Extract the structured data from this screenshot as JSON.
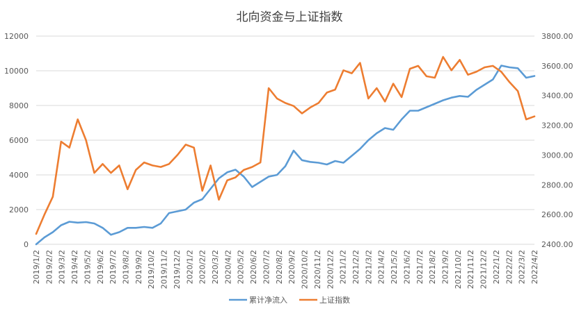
{
  "chart_data": {
    "type": "line",
    "title": "北向资金与上证指数",
    "legend_position": "bottom",
    "grid": true,
    "x_tick_labels": [
      "2019/1/2",
      "2019/2/2",
      "2019/3/2",
      "2019/4/2",
      "2019/5/2",
      "2019/6/2",
      "2019/7/2",
      "2019/8/2",
      "2019/9/2",
      "2019/10/2",
      "2019/11/2",
      "2019/12/2",
      "2020/1/2",
      "2020/2/2",
      "2020/3/2",
      "2020/4/2",
      "2020/5/2",
      "2020/6/2",
      "2020/7/2",
      "2020/8/2",
      "2020/9/2",
      "2020/10/2",
      "2020/11/2",
      "2020/12/2",
      "2021/1/2",
      "2021/2/2",
      "2021/3/2",
      "2021/4/2",
      "2021/5/2",
      "2021/6/2",
      "2021/7/2",
      "2021/8/2",
      "2021/9/2",
      "2021/10/2",
      "2021/11/2",
      "2021/12/2",
      "2022/1/2",
      "2022/2/2",
      "2022/3/2",
      "2022/4/2"
    ],
    "y_left": {
      "ylim": [
        0,
        12000
      ],
      "ticks": [
        "0",
        "2000",
        "4000",
        "6000",
        "8000",
        "10000",
        "12000"
      ]
    },
    "y_right": {
      "ylim": [
        2400,
        3800
      ],
      "ticks": [
        "2400.00",
        "2600.00",
        "2800.00",
        "3000.00",
        "3200.00",
        "3400.00",
        "3600.00",
        "3800.00"
      ]
    },
    "series": [
      {
        "name": "累计净流入",
        "axis": "left",
        "color": "#5B9BD5",
        "values": [
          0,
          400,
          700,
          1100,
          1300,
          1250,
          1280,
          1200,
          950,
          550,
          700,
          950,
          950,
          1000,
          950,
          1200,
          1800,
          1900,
          2000,
          2400,
          2600,
          3200,
          3800,
          4150,
          4300,
          3900,
          3300,
          3600,
          3900,
          4000,
          4500,
          5400,
          4850,
          4750,
          4700,
          4600,
          4800,
          4700,
          5100,
          5500,
          6000,
          6400,
          6700,
          6600,
          7200,
          7700,
          7700,
          7900,
          8100,
          8300,
          8450,
          8550,
          8500,
          8900,
          9200,
          9500,
          10300,
          10200,
          10150,
          9600,
          9700
        ]
      },
      {
        "name": "上证指数",
        "axis": "right",
        "color": "#ED7D31",
        "values": [
          2470,
          2600,
          2720,
          3090,
          3050,
          3240,
          3100,
          2880,
          2940,
          2880,
          2930,
          2770,
          2900,
          2950,
          2930,
          2920,
          2940,
          3000,
          3070,
          3050,
          2760,
          2930,
          2700,
          2830,
          2850,
          2900,
          2920,
          2950,
          3450,
          3380,
          3350,
          3330,
          3280,
          3320,
          3350,
          3420,
          3440,
          3570,
          3550,
          3620,
          3380,
          3450,
          3360,
          3480,
          3390,
          3580,
          3600,
          3530,
          3520,
          3660,
          3570,
          3640,
          3540,
          3560,
          3590,
          3600,
          3560,
          3490,
          3430,
          3240,
          3260
        ]
      }
    ]
  }
}
